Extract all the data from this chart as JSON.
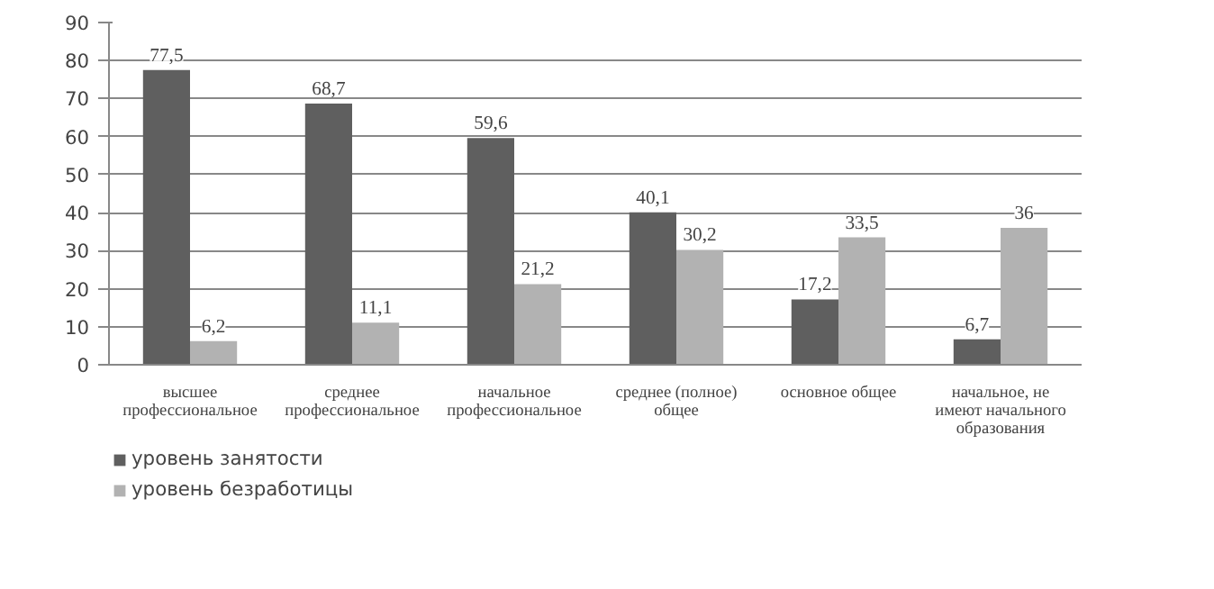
{
  "chart_data": {
    "type": "bar",
    "categories": [
      "высшее\nпрофессиональное",
      "среднее\nпрофессиональное",
      "начальное\nпрофессиональное",
      "среднее (полное)\nобщее",
      "основное общее",
      "начальное, не\nимеют начального\nобразования"
    ],
    "series": [
      {
        "name": "уровень занятости",
        "color": "#5f5f5f",
        "values": [
          77.5,
          68.7,
          59.6,
          40.1,
          17.2,
          6.7
        ],
        "value_labels": [
          "77,5",
          "68,7",
          "59,6",
          "40,1",
          "17,2",
          "6,7"
        ]
      },
      {
        "name": "уровень безработицы",
        "color": "#b2b2b2",
        "values": [
          6.2,
          11.1,
          21.2,
          30.2,
          33.5,
          36
        ],
        "value_labels": [
          "6,2",
          "11,1",
          "21,2",
          "30,2",
          "33,5",
          "36"
        ]
      }
    ],
    "ylim": [
      0,
      90
    ],
    "yticks": [
      0,
      10,
      20,
      30,
      40,
      50,
      60,
      70,
      80,
      90
    ],
    "grid": "y",
    "legend": "bottom left"
  }
}
